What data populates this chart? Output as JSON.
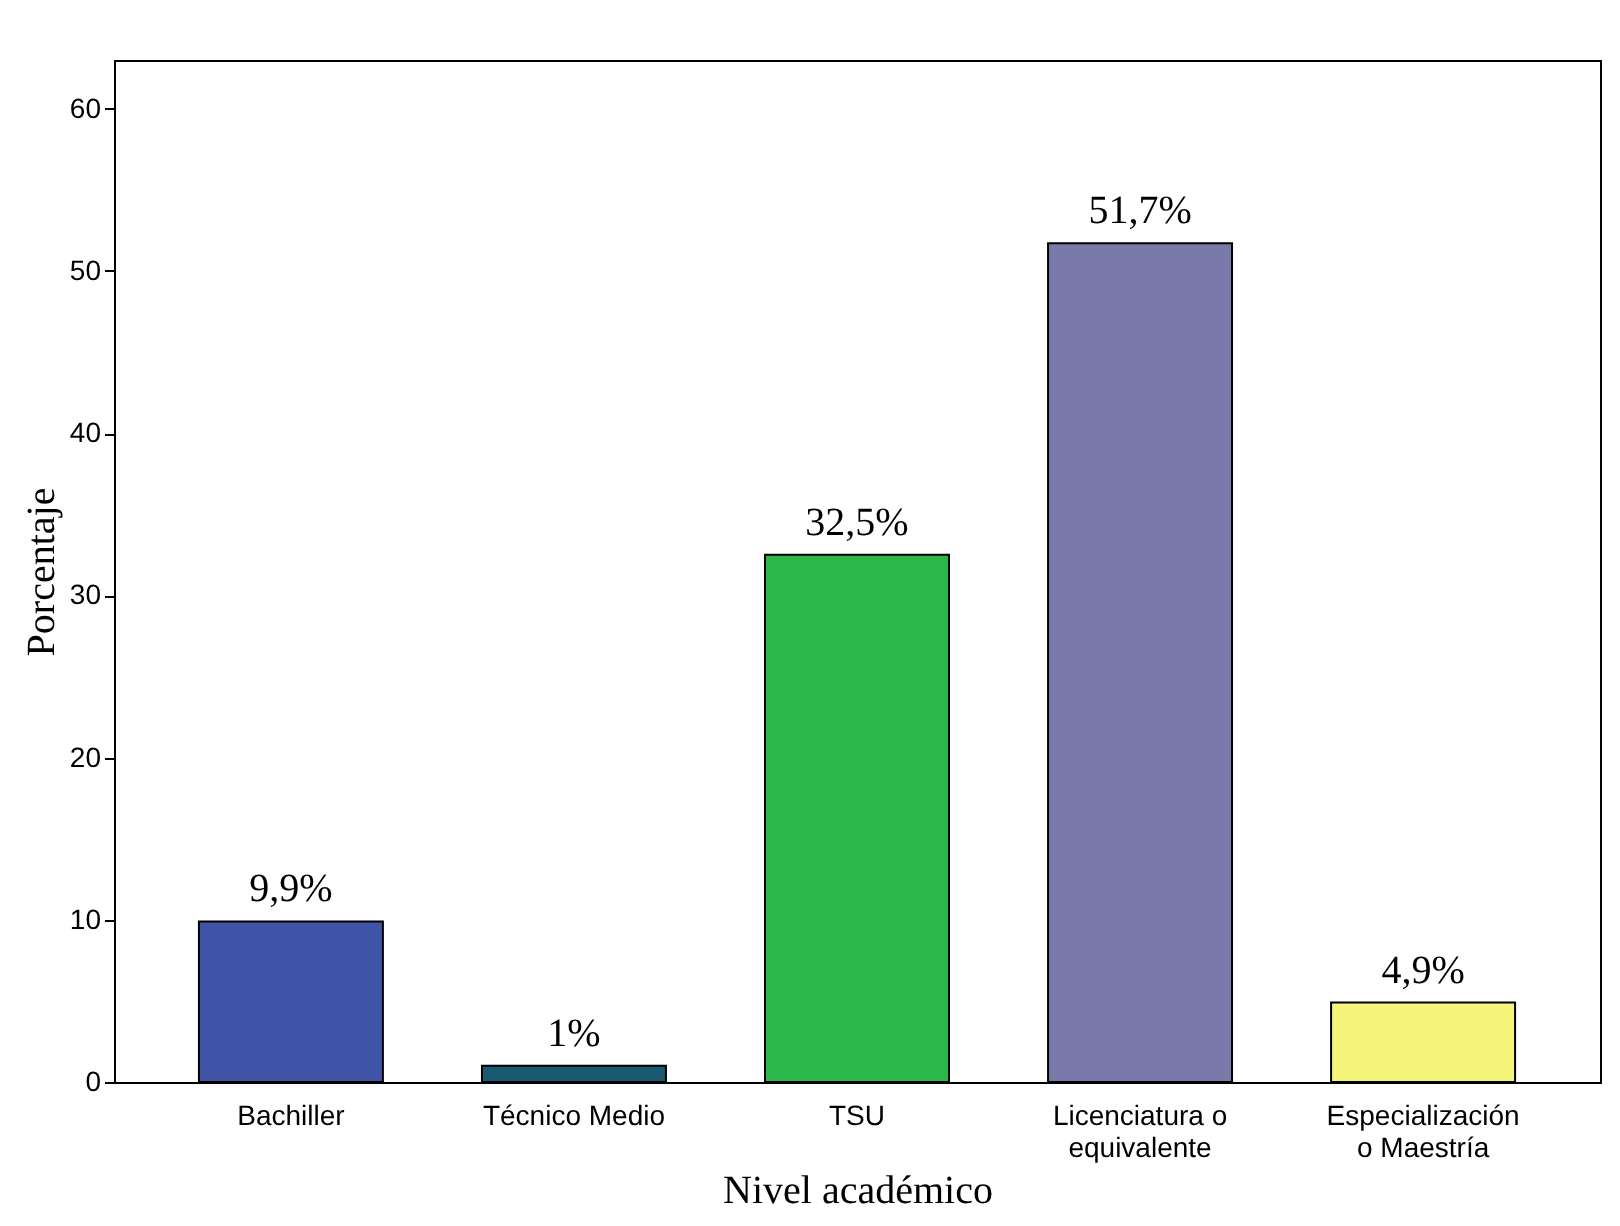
{
  "chart_data": {
    "type": "bar",
    "xlabel": "Nivel académico",
    "ylabel": "Porcentaje",
    "categories": [
      "Bachiller",
      "Técnico Medio",
      "TSU",
      "Licenciatura o equivalente",
      "Especialización o Maestría"
    ],
    "values": [
      9.9,
      1,
      32.5,
      51.7,
      4.9
    ],
    "colors": [
      "#4055a8",
      "#1a5a70",
      "#2db84a",
      "#7a7aaa",
      "#f5f57a"
    ],
    "value_labels": [
      "9,9%",
      "1%",
      "32,5%",
      "51,7%",
      "4,9%"
    ],
    "ylim": [
      0,
      63
    ],
    "yticks": [
      0,
      10,
      20,
      30,
      40,
      50,
      60
    ],
    "grid": false
  }
}
